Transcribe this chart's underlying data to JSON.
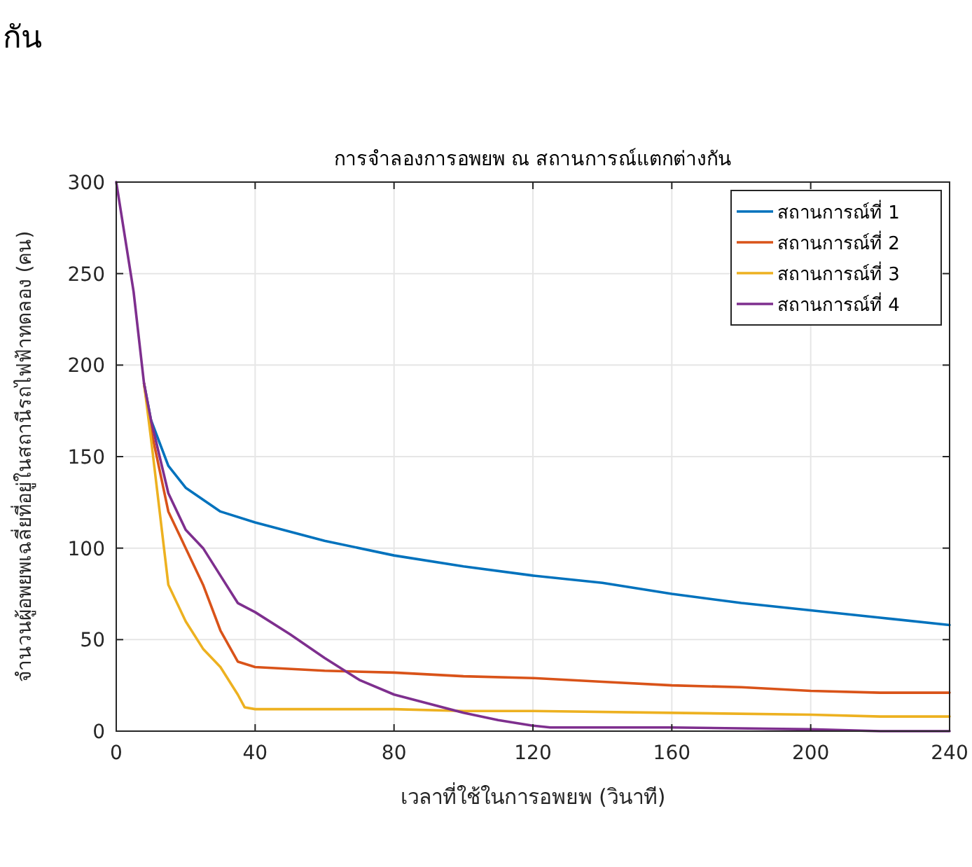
{
  "chart_data": {
    "type": "line",
    "title": "การจำลองการอพยพ ณ สถานการณ์แตกต่างกัน",
    "xlabel": "เวลาที่ใช้ในการอพยพ (วินาที)",
    "ylabel": "จำนวนผู้อพยพเฉลี่ยที่อยู่ในสถานีรถไฟฟ้าทดลอง (คน)",
    "annotations": [
      "กัน"
    ],
    "xlim": [
      0,
      240
    ],
    "xticks": [
      0,
      40,
      80,
      120,
      160,
      200,
      240
    ],
    "ylim": [
      0,
      300
    ],
    "yticks": [
      0,
      50,
      100,
      150,
      200,
      250,
      300
    ],
    "grid": true,
    "legend": "top right",
    "line_style": "solid",
    "series": [
      {
        "name": "สถานการณ์ที่ 1",
        "color": "#0072bd",
        "x": [
          8,
          10,
          15,
          20,
          30,
          40,
          60,
          80,
          100,
          120,
          140,
          160,
          180,
          200,
          220,
          240
        ],
        "values": [
          190,
          170,
          145,
          133,
          120,
          114,
          104,
          96,
          90,
          85,
          81,
          75,
          70,
          66,
          62,
          58
        ]
      },
      {
        "name": "สถานการณ์ที่ 2",
        "color": "#d95319",
        "x": [
          8,
          10,
          15,
          20,
          25,
          30,
          35,
          40,
          60,
          80,
          100,
          120,
          140,
          160,
          180,
          200,
          220,
          240
        ],
        "values": [
          190,
          165,
          120,
          100,
          80,
          55,
          38,
          35,
          33,
          32,
          30,
          29,
          27,
          25,
          24,
          22,
          21,
          21
        ]
      },
      {
        "name": "สถานการณ์ที่ 3",
        "color": "#edb120",
        "x": [
          8,
          10,
          15,
          20,
          25,
          30,
          35,
          37,
          40,
          80,
          100,
          120,
          160,
          200,
          220,
          240
        ],
        "values": [
          190,
          160,
          80,
          60,
          45,
          35,
          20,
          13,
          12,
          12,
          11,
          11,
          10,
          9,
          8,
          8
        ]
      },
      {
        "name": "สถานการณ์ที่ 4",
        "color": "#7e2f8e",
        "x": [
          0,
          5,
          8,
          10,
          15,
          20,
          25,
          30,
          35,
          40,
          50,
          60,
          70,
          80,
          90,
          100,
          110,
          120,
          125,
          160,
          200,
          220,
          240
        ],
        "values": [
          300,
          240,
          190,
          170,
          130,
          110,
          100,
          85,
          70,
          65,
          53,
          40,
          28,
          20,
          15,
          10,
          6,
          3,
          2,
          2,
          1,
          0,
          0
        ]
      }
    ]
  }
}
